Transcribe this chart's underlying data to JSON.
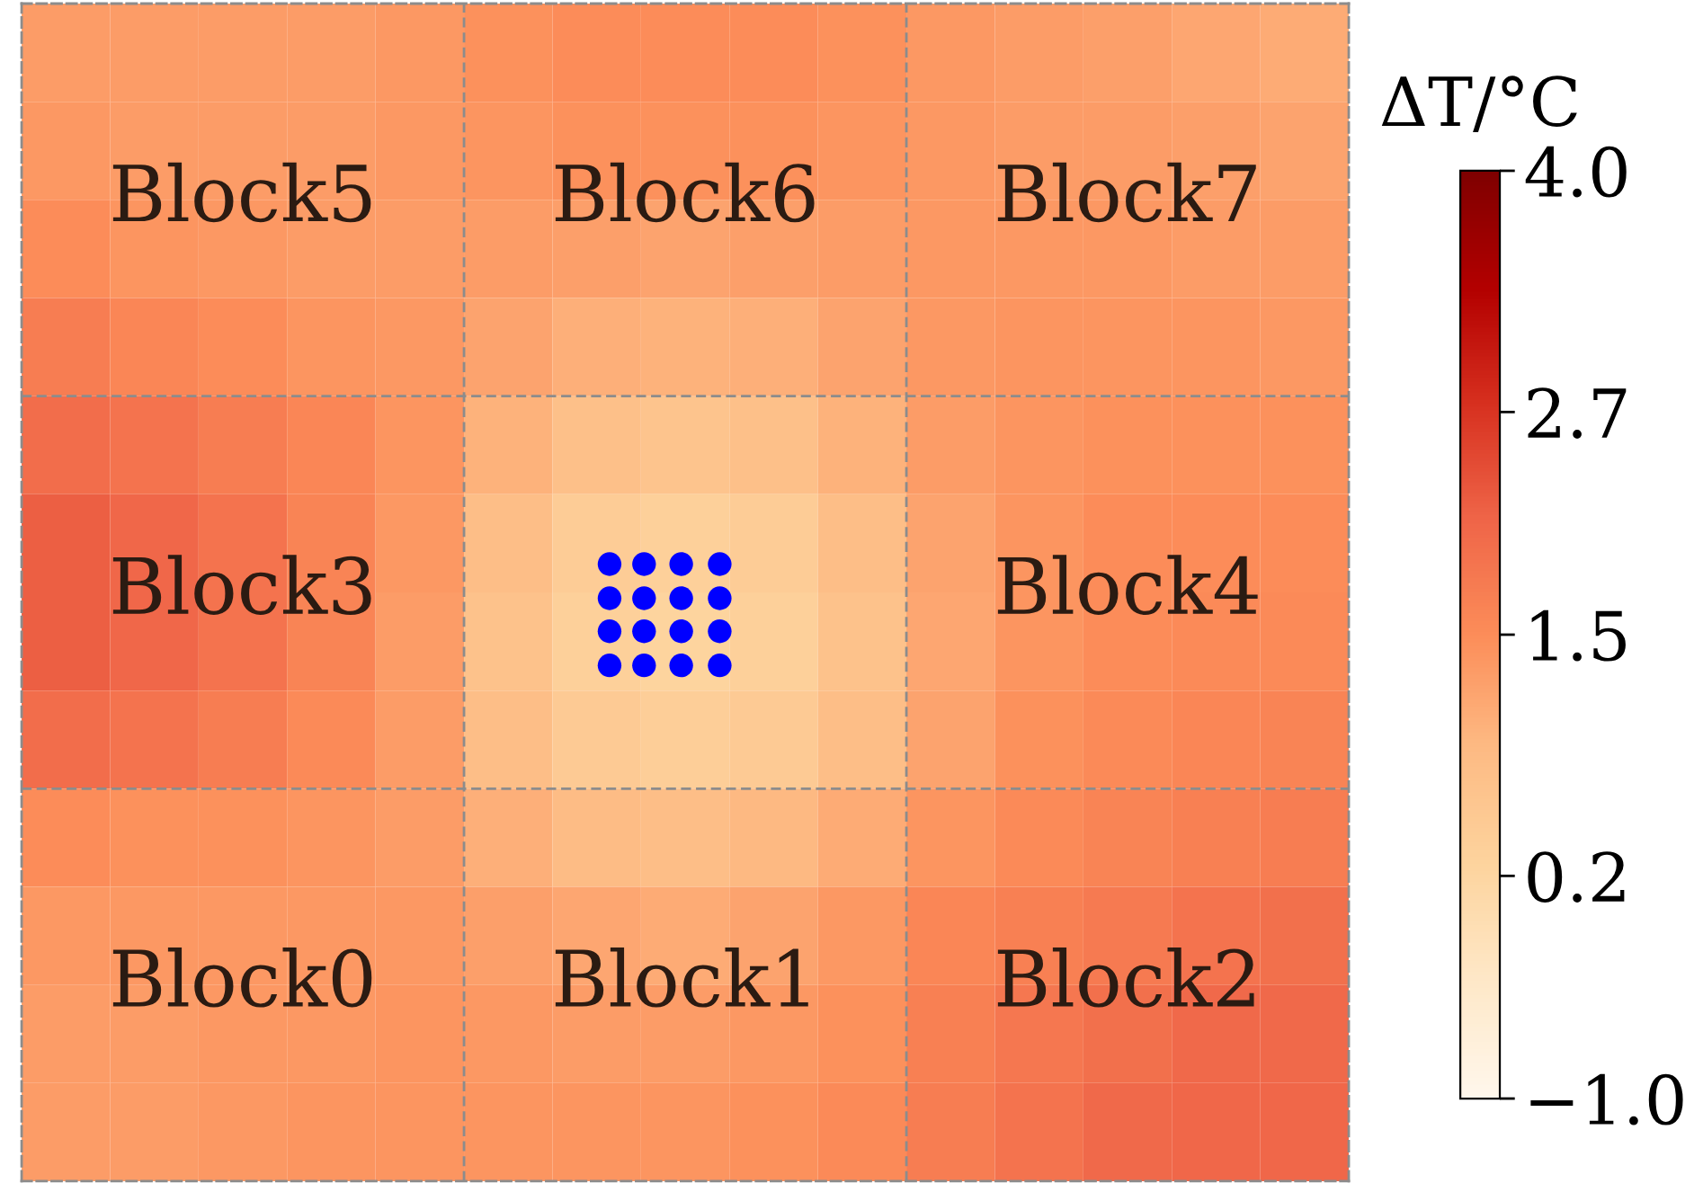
{
  "chart_data": {
    "type": "heatmap",
    "categories": [
      null,
      null,
      null,
      null,
      null,
      null,
      null,
      null,
      null,
      null,
      null,
      null,
      null,
      null,
      null
    ],
    "y_categories": [
      null,
      null,
      null,
      null,
      null,
      null,
      null,
      null,
      null,
      null,
      null,
      null
    ],
    "cells": [
      [
        1.3,
        1.3,
        1.3,
        1.3,
        1.35,
        1.45,
        1.5,
        1.5,
        1.5,
        1.45,
        1.35,
        1.3,
        1.25,
        1.15,
        1.1
      ],
      [
        1.35,
        1.3,
        1.3,
        1.3,
        1.35,
        1.4,
        1.45,
        1.45,
        1.45,
        1.4,
        1.35,
        1.3,
        1.3,
        1.25,
        1.2
      ],
      [
        1.5,
        1.4,
        1.35,
        1.3,
        1.3,
        1.3,
        1.25,
        1.2,
        1.25,
        1.3,
        1.35,
        1.35,
        1.35,
        1.3,
        1.3
      ],
      [
        1.75,
        1.6,
        1.5,
        1.4,
        1.35,
        1.2,
        1.05,
        1.0,
        1.05,
        1.2,
        1.35,
        1.4,
        1.4,
        1.4,
        1.35
      ],
      [
        2.0,
        1.9,
        1.75,
        1.6,
        1.4,
        1.0,
        0.75,
        0.65,
        0.75,
        1.0,
        1.3,
        1.4,
        1.45,
        1.45,
        1.45
      ],
      [
        2.2,
        2.1,
        1.9,
        1.65,
        1.35,
        0.8,
        0.45,
        0.35,
        0.45,
        0.8,
        1.2,
        1.4,
        1.5,
        1.5,
        1.5
      ],
      [
        2.2,
        2.1,
        1.9,
        1.65,
        1.3,
        0.7,
        0.35,
        0.25,
        0.35,
        0.7,
        1.15,
        1.4,
        1.5,
        1.55,
        1.55
      ],
      [
        2.0,
        1.9,
        1.75,
        1.55,
        1.3,
        0.8,
        0.5,
        0.4,
        0.5,
        0.8,
        1.2,
        1.45,
        1.55,
        1.6,
        1.65
      ],
      [
        1.5,
        1.45,
        1.45,
        1.4,
        1.3,
        1.05,
        0.85,
        0.8,
        0.9,
        1.1,
        1.4,
        1.55,
        1.65,
        1.7,
        1.75
      ],
      [
        1.35,
        1.35,
        1.35,
        1.35,
        1.35,
        1.25,
        1.15,
        1.1,
        1.2,
        1.35,
        1.6,
        1.7,
        1.8,
        1.9,
        1.95
      ],
      [
        1.3,
        1.3,
        1.35,
        1.35,
        1.4,
        1.35,
        1.3,
        1.3,
        1.35,
        1.45,
        1.7,
        1.85,
        1.95,
        2.05,
        2.05
      ],
      [
        1.3,
        1.3,
        1.35,
        1.4,
        1.4,
        1.4,
        1.4,
        1.4,
        1.45,
        1.55,
        1.75,
        1.9,
        2.05,
        2.1,
        2.1
      ]
    ],
    "clim": [
      -1.0,
      4.0
    ],
    "cticks": [
      {
        "value": -1.0,
        "label": "−1.0"
      },
      {
        "value": 0.2,
        "label": "0.2"
      },
      {
        "value": 1.5,
        "label": "1.5"
      },
      {
        "value": 2.7,
        "label": "2.7"
      },
      {
        "value": 4.0,
        "label": "4.0"
      }
    ],
    "clabel": "ΔT/°C",
    "annotations": [
      "Block0",
      "Block1",
      "Block2",
      "Block3",
      "Block4",
      "Block5",
      "Block6",
      "Block7"
    ],
    "grid": true,
    "tick_labels": false
  }
}
